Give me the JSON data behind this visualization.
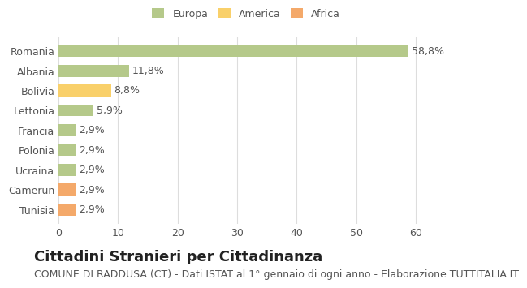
{
  "categories": [
    "Romania",
    "Albania",
    "Bolivia",
    "Lettonia",
    "Francia",
    "Polonia",
    "Ucraina",
    "Camerun",
    "Tunisia"
  ],
  "values": [
    58.8,
    11.8,
    8.8,
    5.9,
    2.9,
    2.9,
    2.9,
    2.9,
    2.9
  ],
  "labels": [
    "58,8%",
    "11,8%",
    "8,8%",
    "5,9%",
    "2,9%",
    "2,9%",
    "2,9%",
    "2,9%",
    "2,9%"
  ],
  "colors": [
    "#b5c98a",
    "#b5c98a",
    "#f9d06a",
    "#b5c98a",
    "#b5c98a",
    "#b5c98a",
    "#b5c98a",
    "#f4a96a",
    "#f4a96a"
  ],
  "legend": [
    {
      "label": "Europa",
      "color": "#b5c98a"
    },
    {
      "label": "America",
      "color": "#f9d06a"
    },
    {
      "label": "Africa",
      "color": "#f4a96a"
    }
  ],
  "xlim": [
    0,
    63
  ],
  "xticks": [
    0,
    10,
    20,
    30,
    40,
    50,
    60
  ],
  "title": "Cittadini Stranieri per Cittadinanza",
  "subtitle": "COMUNE DI RADDUSA (CT) - Dati ISTAT al 1° gennaio di ogni anno - Elaborazione TUTTITALIA.IT",
  "background_color": "#ffffff",
  "grid_color": "#dddddd",
  "bar_height": 0.6,
  "title_fontsize": 13,
  "subtitle_fontsize": 9,
  "label_fontsize": 9,
  "tick_fontsize": 9
}
